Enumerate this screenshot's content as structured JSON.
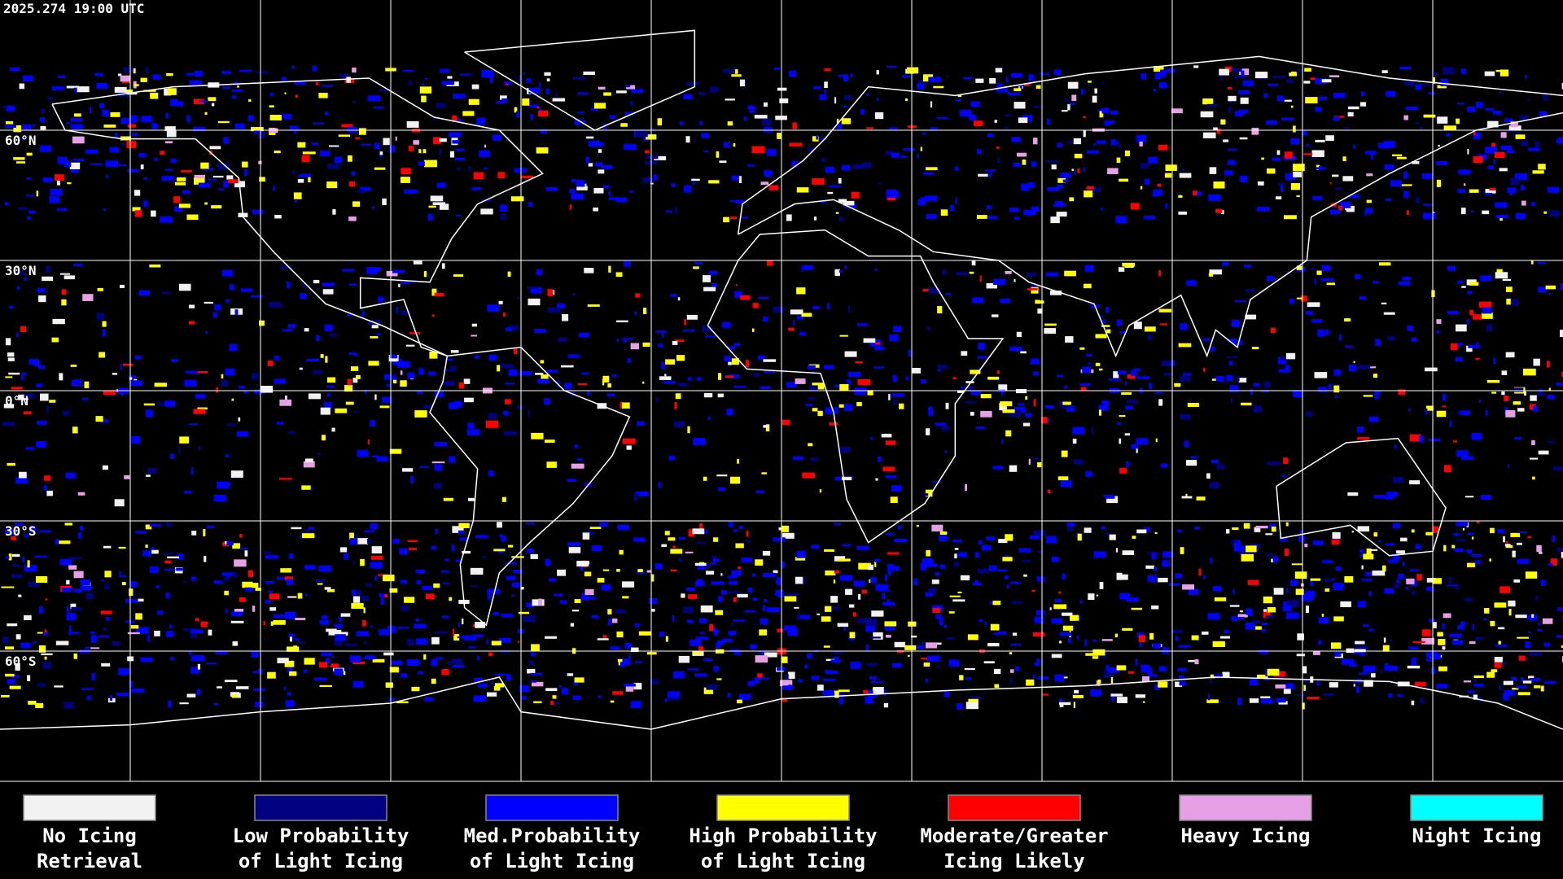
{
  "timestamp": "2025.274 19:00 UTC",
  "latitude_labels": [
    "60°N",
    "30°N",
    "0°N",
    "30°S",
    "60°S"
  ],
  "legend": [
    {
      "label": [
        "No Icing",
        "Retrieval"
      ],
      "color": "#f2f2f2"
    },
    {
      "label": [
        "Low Probability",
        "of Light Icing"
      ],
      "color": "#000080"
    },
    {
      "label": [
        "Med.Probability",
        "of Light Icing"
      ],
      "color": "#0000ff"
    },
    {
      "label": [
        "High Probability",
        "of Light Icing"
      ],
      "color": "#ffff00"
    },
    {
      "label": [
        "Moderate/Greater",
        "Icing Likely"
      ],
      "color": "#ff0000"
    },
    {
      "label": [
        "Heavy Icing"
      ],
      "color": "#e6a0e6"
    },
    {
      "label": [
        "Night Icing"
      ],
      "color": "#00ffff"
    }
  ]
}
